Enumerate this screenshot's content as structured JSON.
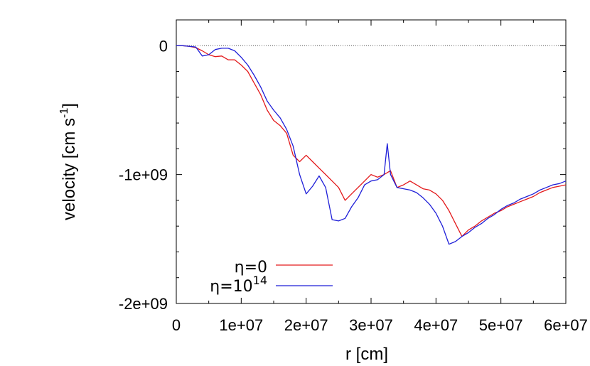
{
  "chart_data": {
    "type": "line",
    "title": "",
    "xlabel": "r [cm]",
    "ylabel_base": "velocity [cm s",
    "ylabel_sup": "-1",
    "ylabel_close": "]",
    "xlim": [
      0,
      60000000
    ],
    "ylim": [
      -2000000000,
      200000000
    ],
    "xticks": [
      0,
      10000000,
      20000000,
      30000000,
      40000000,
      50000000,
      60000000
    ],
    "xtick_labels": [
      "0",
      "1e+07",
      "2e+07",
      "3e+07",
      "4e+07",
      "5e+07",
      "6e+07"
    ],
    "yticks": [
      0,
      -1000000000,
      -2000000000
    ],
    "ytick_labels": [
      "0",
      "-1e+09",
      "-2e+09"
    ],
    "zero_line": true,
    "grid": false,
    "legend_position": "bottom-left",
    "series": [
      {
        "name": "η=0",
        "legend_base": "η=0",
        "legend_sup": "",
        "color": "#e31a1c",
        "points": [
          [
            0,
            0
          ],
          [
            1000000,
            0
          ],
          [
            2000000,
            -5000000
          ],
          [
            3000000,
            -15000000
          ],
          [
            4000000,
            -40000000
          ],
          [
            5000000,
            -70000000
          ],
          [
            6000000,
            -85000000
          ],
          [
            7000000,
            -80000000
          ],
          [
            8000000,
            -110000000
          ],
          [
            9000000,
            -110000000
          ],
          [
            10000000,
            -150000000
          ],
          [
            11000000,
            -200000000
          ],
          [
            12000000,
            -290000000
          ],
          [
            13000000,
            -380000000
          ],
          [
            14000000,
            -500000000
          ],
          [
            15000000,
            -580000000
          ],
          [
            16000000,
            -620000000
          ],
          [
            17000000,
            -680000000
          ],
          [
            18000000,
            -850000000
          ],
          [
            19000000,
            -900000000
          ],
          [
            20000000,
            -850000000
          ],
          [
            21000000,
            -900000000
          ],
          [
            22000000,
            -950000000
          ],
          [
            23000000,
            -1000000000
          ],
          [
            24000000,
            -1050000000
          ],
          [
            25000000,
            -1100000000
          ],
          [
            26000000,
            -1200000000
          ],
          [
            27000000,
            -1150000000
          ],
          [
            28000000,
            -1100000000
          ],
          [
            29000000,
            -1050000000
          ],
          [
            30000000,
            -1000000000
          ],
          [
            31000000,
            -1020000000
          ],
          [
            32000000,
            -1000000000
          ],
          [
            33000000,
            -970000000
          ],
          [
            34000000,
            -1100000000
          ],
          [
            35000000,
            -1080000000
          ],
          [
            36000000,
            -1050000000
          ],
          [
            37000000,
            -1080000000
          ],
          [
            38000000,
            -1110000000
          ],
          [
            39000000,
            -1120000000
          ],
          [
            40000000,
            -1150000000
          ],
          [
            41000000,
            -1200000000
          ],
          [
            42000000,
            -1280000000
          ],
          [
            43000000,
            -1380000000
          ],
          [
            44000000,
            -1480000000
          ],
          [
            45000000,
            -1430000000
          ],
          [
            46000000,
            -1400000000
          ],
          [
            47000000,
            -1360000000
          ],
          [
            48000000,
            -1330000000
          ],
          [
            49000000,
            -1300000000
          ],
          [
            50000000,
            -1280000000
          ],
          [
            51000000,
            -1250000000
          ],
          [
            52000000,
            -1230000000
          ],
          [
            53000000,
            -1210000000
          ],
          [
            54000000,
            -1190000000
          ],
          [
            55000000,
            -1170000000
          ],
          [
            56000000,
            -1140000000
          ],
          [
            57000000,
            -1120000000
          ],
          [
            58000000,
            -1100000000
          ],
          [
            59000000,
            -1090000000
          ],
          [
            60000000,
            -1080000000
          ]
        ]
      },
      {
        "name": "η=10^14",
        "legend_base": "η=10",
        "legend_sup": "14",
        "color": "#1f1fd8",
        "points": [
          [
            0,
            0
          ],
          [
            1000000,
            0
          ],
          [
            2000000,
            -5000000
          ],
          [
            3000000,
            -10000000
          ],
          [
            4000000,
            -80000000
          ],
          [
            5000000,
            -70000000
          ],
          [
            6000000,
            -30000000
          ],
          [
            7000000,
            -20000000
          ],
          [
            8000000,
            -20000000
          ],
          [
            9000000,
            -40000000
          ],
          [
            10000000,
            -90000000
          ],
          [
            11000000,
            -150000000
          ],
          [
            12000000,
            -230000000
          ],
          [
            13000000,
            -320000000
          ],
          [
            14000000,
            -430000000
          ],
          [
            15000000,
            -500000000
          ],
          [
            16000000,
            -560000000
          ],
          [
            17000000,
            -650000000
          ],
          [
            18000000,
            -780000000
          ],
          [
            19000000,
            -1000000000
          ],
          [
            20000000,
            -1150000000
          ],
          [
            21000000,
            -1090000000
          ],
          [
            22000000,
            -1010000000
          ],
          [
            23000000,
            -1100000000
          ],
          [
            24000000,
            -1350000000
          ],
          [
            25000000,
            -1360000000
          ],
          [
            26000000,
            -1340000000
          ],
          [
            27000000,
            -1250000000
          ],
          [
            28000000,
            -1180000000
          ],
          [
            29000000,
            -1080000000
          ],
          [
            30000000,
            -1050000000
          ],
          [
            31000000,
            -1040000000
          ],
          [
            32000000,
            -1000000000
          ],
          [
            32500000,
            -760000000
          ],
          [
            33000000,
            -1000000000
          ],
          [
            34000000,
            -1100000000
          ],
          [
            35000000,
            -1110000000
          ],
          [
            36000000,
            -1120000000
          ],
          [
            37000000,
            -1140000000
          ],
          [
            38000000,
            -1180000000
          ],
          [
            39000000,
            -1230000000
          ],
          [
            40000000,
            -1300000000
          ],
          [
            41000000,
            -1400000000
          ],
          [
            42000000,
            -1540000000
          ],
          [
            43000000,
            -1520000000
          ],
          [
            44000000,
            -1480000000
          ],
          [
            45000000,
            -1450000000
          ],
          [
            46000000,
            -1410000000
          ],
          [
            47000000,
            -1380000000
          ],
          [
            48000000,
            -1340000000
          ],
          [
            49000000,
            -1310000000
          ],
          [
            50000000,
            -1270000000
          ],
          [
            51000000,
            -1240000000
          ],
          [
            52000000,
            -1220000000
          ],
          [
            53000000,
            -1190000000
          ],
          [
            54000000,
            -1170000000
          ],
          [
            55000000,
            -1150000000
          ],
          [
            56000000,
            -1120000000
          ],
          [
            57000000,
            -1100000000
          ],
          [
            58000000,
            -1080000000
          ],
          [
            59000000,
            -1070000000
          ],
          [
            60000000,
            -1050000000
          ]
        ]
      }
    ]
  }
}
